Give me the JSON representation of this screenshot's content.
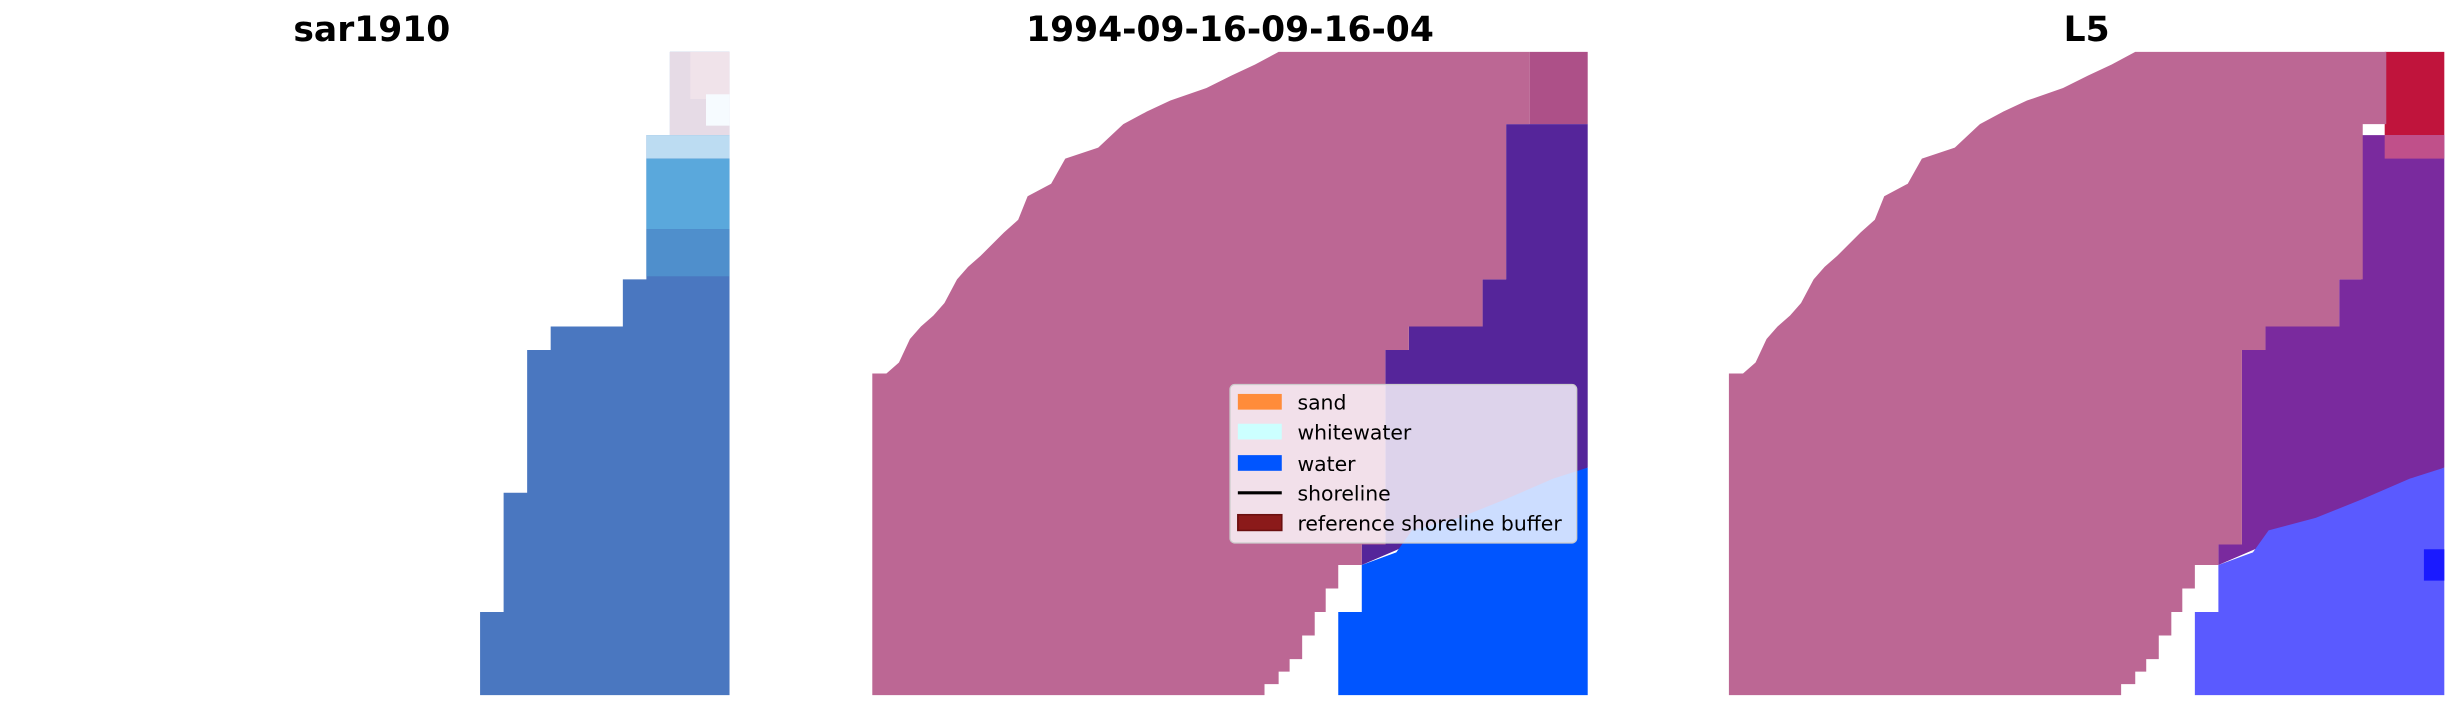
{
  "panels": [
    {
      "title": "sar1910"
    },
    {
      "title": "1994-09-16-09-16-04"
    },
    {
      "title": "L5"
    }
  ],
  "legend": {
    "items": [
      {
        "label": "sand",
        "color": "#ff8c3a",
        "kind": "patch"
      },
      {
        "label": "whitewater",
        "color": "#ccffff",
        "kind": "patch"
      },
      {
        "label": "water",
        "color": "#0055ff",
        "kind": "patch"
      },
      {
        "label": "shoreline",
        "color": "#000000",
        "kind": "line"
      },
      {
        "label": "reference shoreline buffer",
        "color": "#8b1a1a",
        "kind": "patch"
      }
    ]
  },
  "colors": {
    "buffer_overlay": "#bc6794",
    "rgb_water": "#4a77c0",
    "classified_water": "#0055ff",
    "purple": "#55259a",
    "l5_red": "#c0143c",
    "l5_blue": "#5a5aff"
  }
}
